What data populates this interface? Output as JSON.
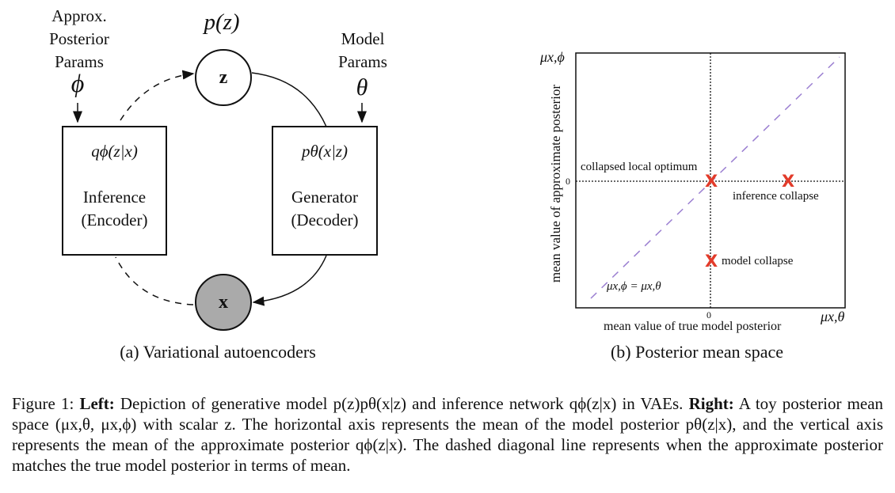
{
  "left_figure": {
    "approx_label_lines": [
      "Approx.",
      "Posterior",
      "Params"
    ],
    "phi_symbol": "ϕ",
    "prior_label": "p(z)",
    "z_node": "z",
    "model_label_lines": [
      "Model",
      "Params"
    ],
    "theta_symbol": "θ",
    "encoder_formula": "qϕ(z|x)",
    "encoder_name_lines": [
      "Inference",
      "(Encoder)"
    ],
    "decoder_formula": "pθ(x|z)",
    "decoder_name_lines": [
      "Generator",
      "(Decoder)"
    ],
    "x_node": "x",
    "subcaption": "(a) Variational autoencoders"
  },
  "right_figure": {
    "y_axis_title": "mean value of approximate posterior",
    "y_axis_symbol": "μx,ϕ",
    "y_zero_tick": "0",
    "x_zero_tick": "0",
    "x_axis_title": "mean value of true model posterior",
    "x_axis_symbol": "μx,θ",
    "annotations": {
      "collapsed_local_optimum": "collapsed local optimum",
      "inference_collapse": "inference collapse",
      "model_collapse": "model collapse",
      "diagonal": "μx,ϕ = μx,θ"
    },
    "marker_symbol": "X",
    "colors": {
      "marker": "#e23b2a",
      "diagonal": "#9b7fd1"
    },
    "subcaption": "(b) Posterior mean space"
  },
  "figure_caption": {
    "label": "Figure 1:",
    "left_bold": "Left:",
    "left_text": "Depiction of generative model p(z)pθ(x|z) and inference network qϕ(z|x) in VAEs.",
    "right_bold": "Right:",
    "right_text": "A toy posterior mean space (μx,θ, μx,ϕ) with scalar z. The horizontal axis represents the mean of the model posterior pθ(z|x), and the vertical axis represents the mean of the approximate posterior qϕ(z|x). The dashed diagonal line represents when the approximate posterior matches the true model posterior in terms of mean."
  }
}
